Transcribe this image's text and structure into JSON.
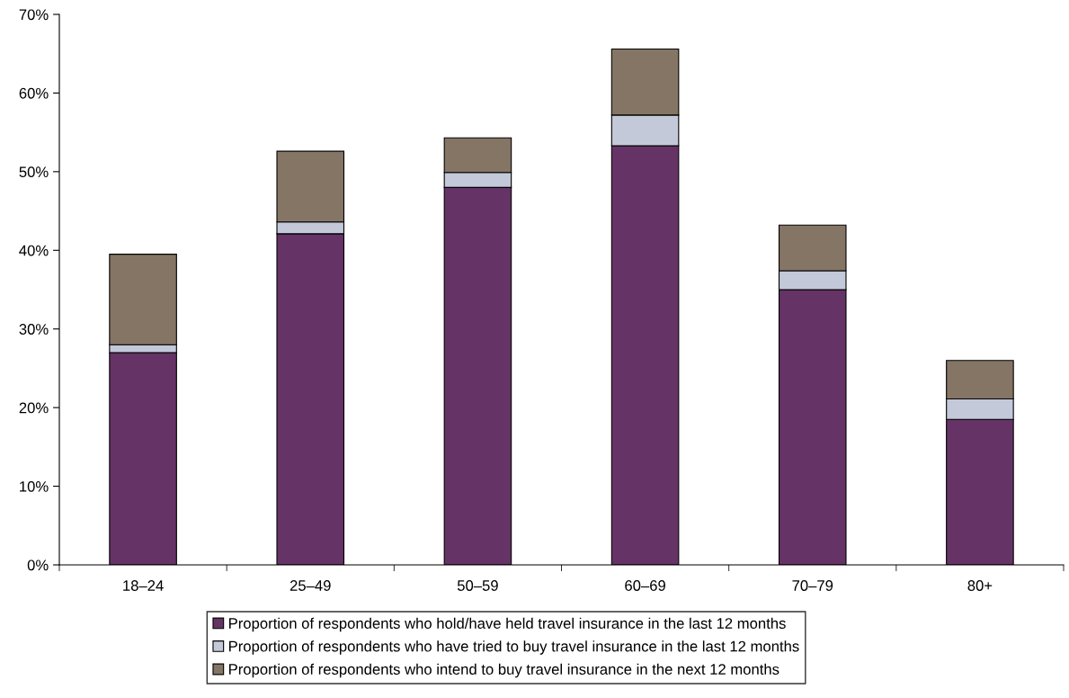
{
  "chart_data": {
    "type": "bar",
    "stacked": true,
    "categories": [
      "18–24",
      "25–49",
      "50–59",
      "60–69",
      "70–79",
      "80+"
    ],
    "series": [
      {
        "name": "Proportion of respondents who hold/have held travel insurance in the last 12 months",
        "color": "#663366",
        "values": [
          27,
          42.1,
          48,
          53.3,
          35,
          18.5
        ]
      },
      {
        "name": "Proportion of respondents who have tried to buy travel insurance in the last 12 months",
        "color": "#c3c9d9",
        "values": [
          1,
          1.5,
          1.9,
          3.9,
          2.4,
          2.6
        ]
      },
      {
        "name": "Proportion of respondents who intend to buy travel insurance in the next 12 months",
        "color": "#857565",
        "values": [
          11.5,
          9,
          4.4,
          8.4,
          5.8,
          4.9
        ]
      }
    ],
    "ylim": [
      0,
      70
    ],
    "yticks": [
      {
        "value": 0,
        "label": "0%"
      },
      {
        "value": 10,
        "label": "10%"
      },
      {
        "value": 20,
        "label": "20%"
      },
      {
        "value": 30,
        "label": "30%"
      },
      {
        "value": 40,
        "label": "40%"
      },
      {
        "value": 50,
        "label": "50%"
      },
      {
        "value": 60,
        "label": "60%"
      },
      {
        "value": 70,
        "label": "70%"
      }
    ],
    "grid": false,
    "legend": "bottom"
  }
}
